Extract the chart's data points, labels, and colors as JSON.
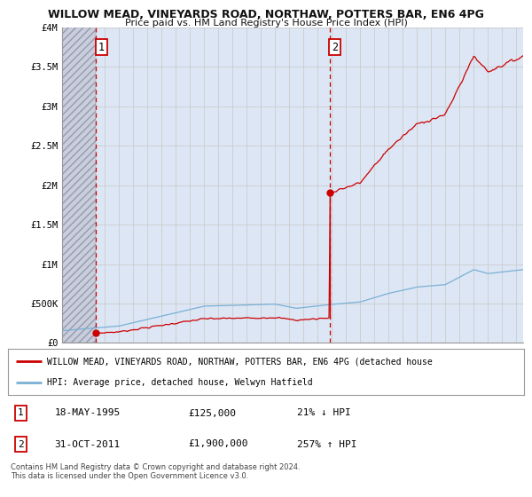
{
  "title": "WILLOW MEAD, VINEYARDS ROAD, NORTHAW, POTTERS BAR, EN6 4PG",
  "subtitle": "Price paid vs. HM Land Registry's House Price Index (HPI)",
  "legend_line1": "WILLOW MEAD, VINEYARDS ROAD, NORTHAW, POTTERS BAR, EN6 4PG (detached house",
  "legend_line2": "HPI: Average price, detached house, Welwyn Hatfield",
  "table_row1": [
    "1",
    "18-MAY-1995",
    "£125,000",
    "21% ↓ HPI"
  ],
  "table_row2": [
    "2",
    "31-OCT-2011",
    "£1,900,000",
    "257% ↑ HPI"
  ],
  "footnote": "Contains HM Land Registry data © Crown copyright and database right 2024.\nThis data is licensed under the Open Government Licence v3.0.",
  "xlim": [
    1993.0,
    2025.5
  ],
  "ylim": [
    0,
    4000000
  ],
  "yticks": [
    0,
    500000,
    1000000,
    1500000,
    2000000,
    2500000,
    3000000,
    3500000,
    4000000
  ],
  "ytick_labels": [
    "£0",
    "£500K",
    "£1M",
    "£1.5M",
    "£2M",
    "£2.5M",
    "£3M",
    "£3.5M",
    "£4M"
  ],
  "xticks": [
    1993,
    1994,
    1995,
    1996,
    1997,
    1998,
    1999,
    2000,
    2001,
    2002,
    2003,
    2004,
    2005,
    2006,
    2007,
    2008,
    2009,
    2010,
    2011,
    2012,
    2013,
    2014,
    2015,
    2016,
    2017,
    2018,
    2019,
    2020,
    2021,
    2022,
    2023,
    2024,
    2025
  ],
  "purchase1_year": 1995.38,
  "purchase1_price": 125000,
  "purchase2_year": 2011.83,
  "purchase2_price": 1900000,
  "dashed_line1_x": 1995.38,
  "dashed_line2_x": 2011.83,
  "red_color": "#cc0000",
  "blue_color": "#7ab0d4",
  "grid_color": "#cccccc",
  "background_color": "#ffffff",
  "plot_bg_color": "#dce6f5",
  "hatch_bg_color": "#c8cedd",
  "marker_label_border_color": "#cc0000"
}
